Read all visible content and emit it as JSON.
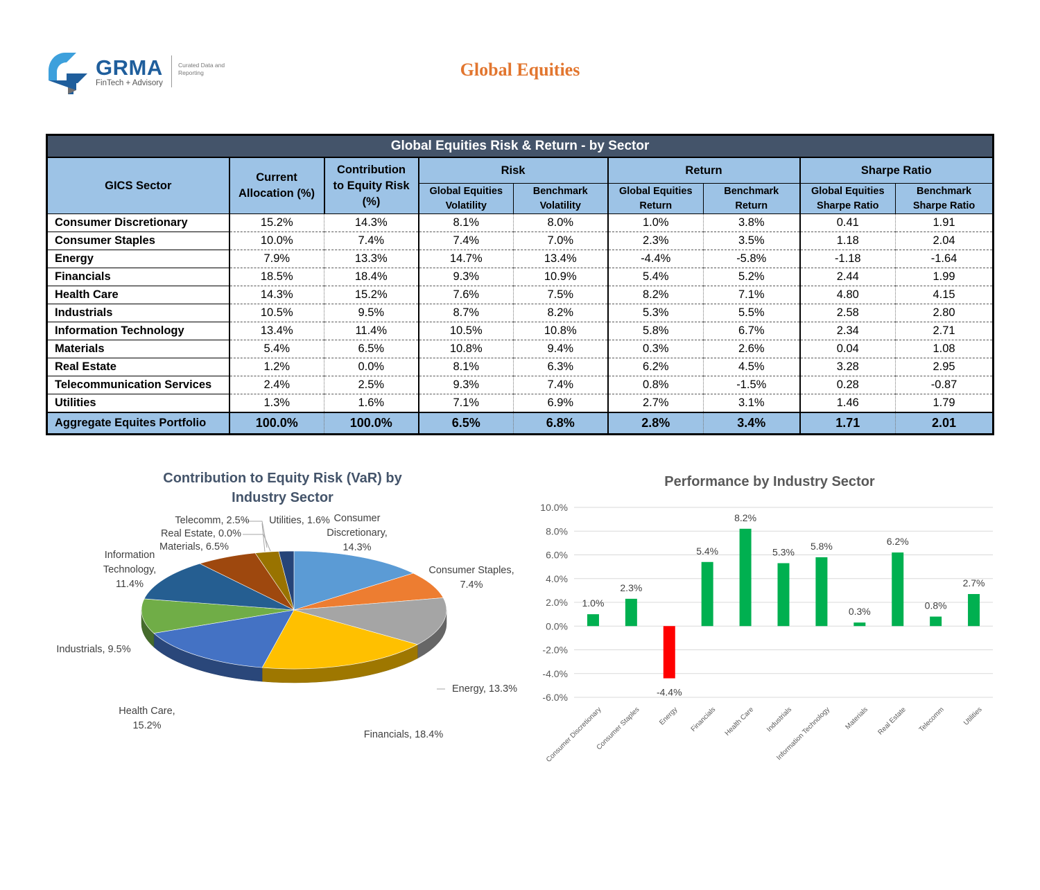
{
  "logo": {
    "word": "GRMA",
    "sub": "FinTech + Advisory",
    "tagline": "Curated Data and Reporting",
    "colors": {
      "blue": "#1f5e9c",
      "light": "#3da0dc",
      "grey": "#6d6e71"
    }
  },
  "page": {
    "title": "Global Equities",
    "title_color": "#e2762f"
  },
  "table": {
    "banner": "Global Equities Risk & Return - by Sector",
    "headers": {
      "sector": "GICS Sector",
      "allocation": "Current Allocation (%)",
      "contribution": "Contribution to Equity Risk (%)",
      "risk": "Risk",
      "return": "Return",
      "sharpe": "Sharpe Ratio",
      "sub": [
        "Global Equities Volatility",
        "Benchmark Volatility",
        "Global Equities Return",
        "Benchmark Return",
        "Global Equities Sharpe Ratio",
        "Benchmark Sharpe Ratio"
      ]
    },
    "rows": [
      [
        "Consumer Discretionary",
        "15.2%",
        "14.3%",
        "8.1%",
        "8.0%",
        "1.0%",
        "3.8%",
        "0.41",
        "1.91"
      ],
      [
        "Consumer Staples",
        "10.0%",
        "7.4%",
        "7.4%",
        "7.0%",
        "2.3%",
        "3.5%",
        "1.18",
        "2.04"
      ],
      [
        "Energy",
        "7.9%",
        "13.3%",
        "14.7%",
        "13.4%",
        "-4.4%",
        "-5.8%",
        "-1.18",
        "-1.64"
      ],
      [
        "Financials",
        "18.5%",
        "18.4%",
        "9.3%",
        "10.9%",
        "5.4%",
        "5.2%",
        "2.44",
        "1.99"
      ],
      [
        "Health Care",
        "14.3%",
        "15.2%",
        "7.6%",
        "7.5%",
        "8.2%",
        "7.1%",
        "4.80",
        "4.15"
      ],
      [
        "Industrials",
        "10.5%",
        "9.5%",
        "8.7%",
        "8.2%",
        "5.3%",
        "5.5%",
        "2.58",
        "2.80"
      ],
      [
        "Information Technology",
        "13.4%",
        "11.4%",
        "10.5%",
        "10.8%",
        "5.8%",
        "6.7%",
        "2.34",
        "2.71"
      ],
      [
        "Materials",
        "5.4%",
        "6.5%",
        "10.8%",
        "9.4%",
        "0.3%",
        "2.6%",
        "0.04",
        "1.08"
      ],
      [
        "Real Estate",
        "1.2%",
        "0.0%",
        "8.1%",
        "6.3%",
        "6.2%",
        "4.5%",
        "3.28",
        "2.95"
      ],
      [
        "Telecommunication Services",
        "2.4%",
        "2.5%",
        "9.3%",
        "7.4%",
        "0.8%",
        "-1.5%",
        "0.28",
        "-0.87"
      ],
      [
        "Utilities",
        "1.3%",
        "1.6%",
        "7.1%",
        "6.9%",
        "2.7%",
        "3.1%",
        "1.46",
        "1.79"
      ]
    ],
    "aggregate": [
      "Aggregate Equites Portfolio",
      "100.0%",
      "100.0%",
      "6.5%",
      "6.8%",
      "2.8%",
      "3.4%",
      "1.71",
      "2.01"
    ]
  },
  "chart_data": [
    {
      "type": "pie",
      "title": "Contribution to Equity Risk (VaR) by Industry Sector",
      "style": "3d",
      "categories": [
        "Consumer Discretionary",
        "Consumer Staples",
        "Energy",
        "Financials",
        "Health Care",
        "Industrials",
        "Information Technology",
        "Materials",
        "Real Estate",
        "Telecomm",
        "Utilities"
      ],
      "values": [
        14.3,
        7.4,
        13.3,
        18.4,
        15.2,
        9.5,
        11.4,
        6.5,
        0.0,
        2.5,
        1.6
      ],
      "data_labels": [
        "Consumer Discretionary, 14.3%",
        "Consumer Staples, 7.4%",
        "Energy, 13.3%",
        "Financials, 18.4%",
        "Health Care, 15.2%",
        "Industrials, 9.5%",
        "Information Technology, 11.4%",
        "Materials, 6.5%",
        "Real Estate, 0.0%",
        "Telecomm, 2.5%",
        "Utilities, 1.6%"
      ],
      "colors": [
        "#5b9bd5",
        "#ed7d31",
        "#a5a5a5",
        "#ffc000",
        "#4472c4",
        "#70ad47",
        "#255e91",
        "#9e480e",
        "#636363",
        "#997300",
        "#264478"
      ]
    },
    {
      "type": "bar",
      "title": "Performance by Industry Sector",
      "categories": [
        "Consumer Discretionary",
        "Consumer Staples",
        "Energy",
        "Financials",
        "Health Care",
        "Industrials",
        "Information Technology",
        "Materials",
        "Real Estate",
        "Telecomm",
        "Utilities"
      ],
      "values": [
        1.0,
        2.3,
        -4.4,
        5.4,
        8.2,
        5.3,
        5.8,
        0.3,
        6.2,
        0.8,
        2.7
      ],
      "data_labels": [
        "1.0%",
        "2.3%",
        "-4.4%",
        "5.4%",
        "8.2%",
        "5.3%",
        "5.8%",
        "0.3%",
        "6.2%",
        "0.8%",
        "2.7%"
      ],
      "yticks": [
        "10.0%",
        "8.0%",
        "6.0%",
        "4.0%",
        "2.0%",
        "0.0%",
        "-2.0%",
        "-4.0%",
        "-6.0%"
      ],
      "ylim": [
        -6,
        10
      ],
      "grid": true,
      "positive_color": "#00b050",
      "negative_color": "#ff0000"
    }
  ]
}
